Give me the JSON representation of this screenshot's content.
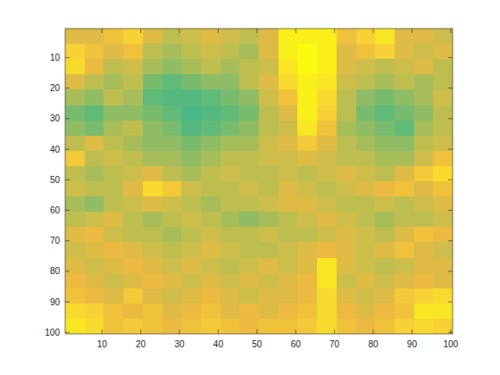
{
  "chart_data": {
    "type": "heatmap",
    "x": [
      3,
      8,
      13,
      18,
      23,
      28,
      33,
      38,
      43,
      48,
      53,
      58,
      63,
      68,
      73,
      78,
      83,
      88,
      93,
      98
    ],
    "y": [
      3,
      8,
      13,
      18,
      23,
      28,
      33,
      38,
      43,
      48,
      53,
      58,
      63,
      68,
      73,
      78,
      83,
      88,
      93,
      98
    ],
    "xlim": [
      0.5,
      100.5
    ],
    "ylim": [
      0.5,
      100.5
    ],
    "xticks": [
      10,
      20,
      30,
      40,
      50,
      60,
      70,
      80,
      90,
      100
    ],
    "yticks": [
      10,
      20,
      30,
      40,
      50,
      60,
      70,
      80,
      90,
      100
    ],
    "clim": [
      0,
      1
    ],
    "cells": [
      [
        0.6,
        0.6,
        0.7,
        0.8,
        0.6,
        0.5,
        0.55,
        0.6,
        0.55,
        0.5,
        0.6,
        0.95,
        0.95,
        0.95,
        0.7,
        0.8,
        0.9,
        0.6,
        0.6,
        0.55
      ],
      [
        0.8,
        0.7,
        0.6,
        0.7,
        0.5,
        0.45,
        0.5,
        0.55,
        0.5,
        0.45,
        0.6,
        0.95,
        1,
        0.95,
        0.6,
        0.7,
        0.8,
        0.6,
        0.55,
        0.6
      ],
      [
        0.85,
        0.65,
        0.5,
        0.55,
        0.45,
        0.4,
        0.45,
        0.5,
        0.45,
        0.5,
        0.55,
        0.9,
        1,
        0.95,
        0.6,
        0.55,
        0.5,
        0.55,
        0.6,
        0.5
      ],
      [
        0.6,
        0.5,
        0.45,
        0.5,
        0.35,
        0.3,
        0.35,
        0.4,
        0.4,
        0.5,
        0.6,
        0.85,
        0.95,
        0.9,
        0.55,
        0.5,
        0.45,
        0.5,
        0.45,
        0.5
      ],
      [
        0.45,
        0.4,
        0.5,
        0.45,
        0.3,
        0.25,
        0.25,
        0.3,
        0.35,
        0.4,
        0.55,
        0.7,
        0.95,
        0.85,
        0.5,
        0.4,
        0.35,
        0.4,
        0.45,
        0.55
      ],
      [
        0.35,
        0.3,
        0.4,
        0.4,
        0.35,
        0.3,
        0.2,
        0.25,
        0.3,
        0.35,
        0.5,
        0.6,
        0.95,
        0.8,
        0.5,
        0.35,
        0.3,
        0.35,
        0.4,
        0.5
      ],
      [
        0.4,
        0.35,
        0.45,
        0.5,
        0.4,
        0.35,
        0.25,
        0.3,
        0.35,
        0.4,
        0.5,
        0.55,
        0.9,
        0.7,
        0.45,
        0.4,
        0.35,
        0.3,
        0.45,
        0.5
      ],
      [
        0.5,
        0.6,
        0.5,
        0.45,
        0.4,
        0.4,
        0.35,
        0.4,
        0.45,
        0.45,
        0.55,
        0.6,
        0.75,
        0.6,
        0.5,
        0.45,
        0.4,
        0.4,
        0.5,
        0.55
      ],
      [
        0.75,
        0.5,
        0.55,
        0.5,
        0.45,
        0.45,
        0.4,
        0.45,
        0.5,
        0.5,
        0.55,
        0.55,
        0.6,
        0.55,
        0.5,
        0.5,
        0.45,
        0.45,
        0.55,
        0.7
      ],
      [
        0.5,
        0.45,
        0.5,
        0.55,
        0.6,
        0.5,
        0.45,
        0.5,
        0.55,
        0.5,
        0.5,
        0.55,
        0.5,
        0.55,
        0.6,
        0.55,
        0.5,
        0.6,
        0.75,
        0.85
      ],
      [
        0.55,
        0.5,
        0.5,
        0.6,
        0.85,
        0.75,
        0.55,
        0.5,
        0.5,
        0.55,
        0.5,
        0.6,
        0.55,
        0.5,
        0.55,
        0.6,
        0.65,
        0.7,
        0.6,
        0.7
      ],
      [
        0.45,
        0.4,
        0.5,
        0.55,
        0.6,
        0.55,
        0.5,
        0.45,
        0.5,
        0.5,
        0.55,
        0.6,
        0.6,
        0.55,
        0.5,
        0.5,
        0.55,
        0.5,
        0.55,
        0.6
      ],
      [
        0.5,
        0.55,
        0.6,
        0.5,
        0.45,
        0.5,
        0.55,
        0.5,
        0.45,
        0.4,
        0.45,
        0.5,
        0.55,
        0.6,
        0.55,
        0.5,
        0.45,
        0.5,
        0.5,
        0.55
      ],
      [
        0.6,
        0.65,
        0.55,
        0.5,
        0.5,
        0.45,
        0.5,
        0.55,
        0.5,
        0.5,
        0.55,
        0.5,
        0.5,
        0.55,
        0.6,
        0.55,
        0.5,
        0.6,
        0.7,
        0.65
      ],
      [
        0.55,
        0.6,
        0.65,
        0.6,
        0.55,
        0.5,
        0.55,
        0.6,
        0.55,
        0.5,
        0.5,
        0.55,
        0.6,
        0.65,
        0.6,
        0.55,
        0.6,
        0.7,
        0.6,
        0.55
      ],
      [
        0.6,
        0.55,
        0.6,
        0.65,
        0.6,
        0.55,
        0.6,
        0.55,
        0.5,
        0.55,
        0.6,
        0.55,
        0.6,
        0.9,
        0.6,
        0.55,
        0.5,
        0.55,
        0.6,
        0.6
      ],
      [
        0.65,
        0.6,
        0.55,
        0.6,
        0.65,
        0.6,
        0.55,
        0.6,
        0.55,
        0.6,
        0.55,
        0.6,
        0.65,
        0.9,
        0.55,
        0.6,
        0.55,
        0.6,
        0.65,
        0.6
      ],
      [
        0.7,
        0.65,
        0.6,
        0.75,
        0.6,
        0.55,
        0.6,
        0.65,
        0.6,
        0.55,
        0.6,
        0.6,
        0.65,
        0.85,
        0.6,
        0.55,
        0.6,
        0.75,
        0.8,
        0.85
      ],
      [
        0.85,
        0.8,
        0.7,
        0.65,
        0.7,
        0.6,
        0.65,
        0.7,
        0.6,
        0.65,
        0.6,
        0.65,
        0.7,
        0.85,
        0.65,
        0.6,
        0.65,
        0.7,
        0.9,
        0.9
      ],
      [
        0.9,
        0.85,
        0.7,
        0.75,
        0.7,
        0.65,
        0.7,
        0.75,
        0.7,
        0.65,
        0.7,
        0.7,
        0.75,
        0.85,
        0.7,
        0.65,
        0.7,
        0.8,
        0.85,
        0.8
      ]
    ]
  }
}
